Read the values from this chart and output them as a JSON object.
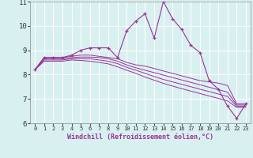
{
  "x": [
    0,
    1,
    2,
    3,
    4,
    5,
    6,
    7,
    8,
    9,
    10,
    11,
    12,
    13,
    14,
    15,
    16,
    17,
    18,
    19,
    20,
    21,
    22,
    23
  ],
  "line_main": [
    8.2,
    8.7,
    8.7,
    8.7,
    8.8,
    9.0,
    9.1,
    9.1,
    9.1,
    8.7,
    9.8,
    10.2,
    10.5,
    9.5,
    11.0,
    10.3,
    9.85,
    9.2,
    8.9,
    7.75,
    7.4,
    6.7,
    6.2,
    6.8
  ],
  "line2": [
    8.2,
    8.7,
    8.7,
    8.7,
    8.75,
    8.8,
    8.8,
    8.75,
    8.7,
    8.65,
    8.5,
    8.4,
    8.35,
    8.25,
    8.15,
    8.05,
    7.95,
    7.85,
    7.75,
    7.7,
    7.65,
    7.55,
    6.8,
    6.8
  ],
  "line3": [
    8.2,
    8.65,
    8.65,
    8.65,
    8.7,
    8.72,
    8.72,
    8.7,
    8.65,
    8.55,
    8.4,
    8.28,
    8.18,
    8.08,
    7.98,
    7.88,
    7.78,
    7.68,
    7.58,
    7.48,
    7.38,
    7.28,
    6.75,
    6.75
  ],
  "line4": [
    8.2,
    8.6,
    8.6,
    8.6,
    8.65,
    8.65,
    8.65,
    8.6,
    8.55,
    8.45,
    8.3,
    8.18,
    8.05,
    7.92,
    7.8,
    7.7,
    7.6,
    7.5,
    7.4,
    7.3,
    7.2,
    7.1,
    6.7,
    6.7
  ],
  "line5": [
    8.2,
    8.55,
    8.55,
    8.55,
    8.6,
    8.58,
    8.55,
    8.5,
    8.44,
    8.32,
    8.18,
    8.05,
    7.9,
    7.77,
    7.64,
    7.53,
    7.42,
    7.32,
    7.22,
    7.12,
    7.02,
    6.92,
    6.65,
    6.65
  ],
  "color_main": "#993399",
  "color_lines": "#993399",
  "bg_color": "#d8f0f0",
  "grid_color": "#ffffff",
  "xlabel": "Windchill (Refroidissement éolien,°C)",
  "ylim": [
    6,
    11
  ],
  "xlim_min": -0.5,
  "xlim_max": 23.5,
  "yticks": [
    6,
    7,
    8,
    9,
    10,
    11
  ],
  "xticks": [
    0,
    1,
    2,
    3,
    4,
    5,
    6,
    7,
    8,
    9,
    10,
    11,
    12,
    13,
    14,
    15,
    16,
    17,
    18,
    19,
    20,
    21,
    22,
    23
  ]
}
